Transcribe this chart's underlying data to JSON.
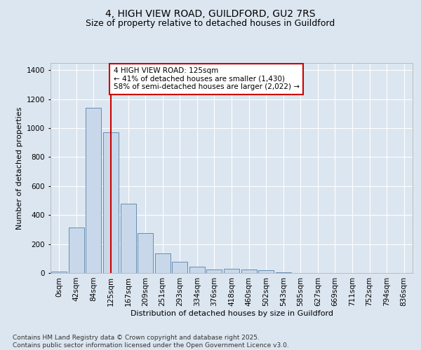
{
  "title_line1": "4, HIGH VIEW ROAD, GUILDFORD, GU2 7RS",
  "title_line2": "Size of property relative to detached houses in Guildford",
  "xlabel": "Distribution of detached houses by size in Guildford",
  "ylabel": "Number of detached properties",
  "categories": [
    "0sqm",
    "42sqm",
    "84sqm",
    "125sqm",
    "167sqm",
    "209sqm",
    "251sqm",
    "293sqm",
    "334sqm",
    "376sqm",
    "418sqm",
    "460sqm",
    "502sqm",
    "543sqm",
    "585sqm",
    "627sqm",
    "669sqm",
    "711sqm",
    "752sqm",
    "794sqm",
    "836sqm"
  ],
  "values": [
    10,
    315,
    1140,
    970,
    480,
    275,
    135,
    75,
    45,
    25,
    28,
    25,
    20,
    5,
    0,
    0,
    0,
    0,
    0,
    0,
    0
  ],
  "bar_color": "#c8d8ea",
  "bar_edge_color": "#5580a8",
  "vline_x_index": 3,
  "vline_color": "#cc0000",
  "annotation_text": "4 HIGH VIEW ROAD: 125sqm\n← 41% of detached houses are smaller (1,430)\n58% of semi-detached houses are larger (2,022) →",
  "annotation_box_edgecolor": "#cc0000",
  "annotation_text_color": "black",
  "annotation_bg": "white",
  "ylim": [
    0,
    1450
  ],
  "yticks": [
    0,
    200,
    400,
    600,
    800,
    1000,
    1200,
    1400
  ],
  "bg_color": "#dce6f0",
  "plot_bg_color": "#dce6f0",
  "footer_line1": "Contains HM Land Registry data © Crown copyright and database right 2025.",
  "footer_line2": "Contains public sector information licensed under the Open Government Licence v3.0.",
  "title_fontsize": 10,
  "subtitle_fontsize": 9,
  "label_fontsize": 8,
  "tick_fontsize": 7.5,
  "annot_fontsize": 7.5,
  "footer_fontsize": 6.5
}
